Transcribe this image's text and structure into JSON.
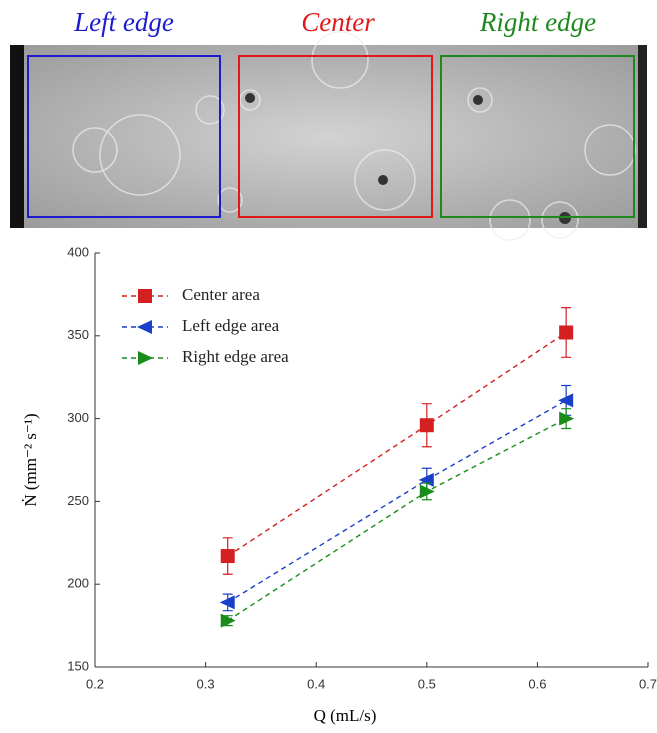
{
  "image_labels": [
    {
      "text": "Left edge",
      "color": "#1c1ccc"
    },
    {
      "text": "Center",
      "color": "#e01818"
    },
    {
      "text": "Right edge",
      "color": "#1e8a1e"
    }
  ],
  "chart_data": {
    "type": "line",
    "xlabel": "Q (mL/s)",
    "ylabel": "Ṅ (mm⁻² s⁻¹)",
    "xlim": [
      0.2,
      0.7
    ],
    "xticks": [
      0.2,
      0.3,
      0.4,
      0.5,
      0.6,
      0.7
    ],
    "ylim": [
      150,
      400
    ],
    "yticks": [
      150,
      200,
      250,
      300,
      350,
      400
    ],
    "legend": "upper left",
    "series": [
      {
        "name": "Center area",
        "color": "#d42020",
        "marker": "square",
        "x": [
          0.32,
          0.5,
          0.626
        ],
        "values": [
          217,
          296,
          352
        ],
        "errors": [
          11,
          13,
          15
        ]
      },
      {
        "name": "Left edge area",
        "color": "#1a3fc8",
        "marker": "triangle-left",
        "x": [
          0.32,
          0.5,
          0.626
        ],
        "values": [
          189,
          263,
          311
        ],
        "errors": [
          5,
          7,
          9
        ]
      },
      {
        "name": "Right edge area",
        "color": "#1a8c1a",
        "marker": "triangle-right",
        "x": [
          0.32,
          0.5,
          0.626
        ],
        "values": [
          178,
          256,
          300
        ],
        "errors": [
          3,
          5,
          6
        ]
      }
    ]
  }
}
